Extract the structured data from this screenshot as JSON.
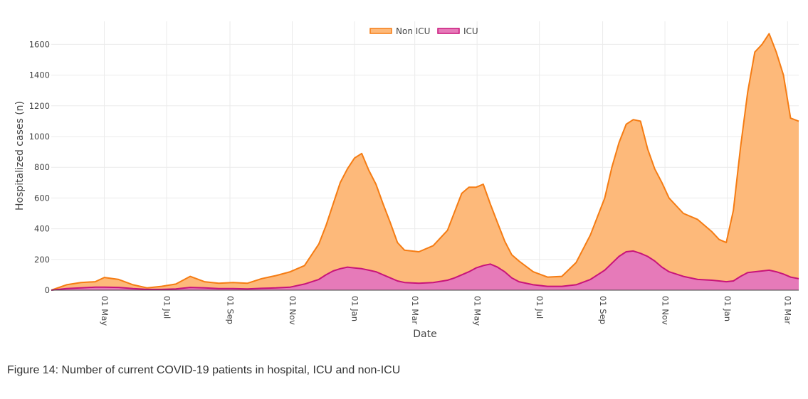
{
  "caption": "Figure 14: Number of current COVID-19 patients in hospital, ICU and non-ICU",
  "chart_data": {
    "type": "area",
    "stacked": true,
    "xlabel": "Date",
    "ylabel": "Hospitalized cases (n)",
    "x_range": [
      "2020-03-10",
      "2022-03-12"
    ],
    "ylim": [
      0,
      1750
    ],
    "y_ticks": [
      0,
      200,
      400,
      600,
      800,
      1000,
      1200,
      1400,
      1600
    ],
    "x_ticks": [
      {
        "date": "2020-05-01",
        "label": "01 May"
      },
      {
        "date": "2020-07-01",
        "label": "01 Jul"
      },
      {
        "date": "2020-09-01",
        "label": "01 Sep"
      },
      {
        "date": "2020-11-01",
        "label": "01 Nov"
      },
      {
        "date": "2021-01-01",
        "label": "01 Jan"
      },
      {
        "date": "2021-03-01",
        "label": "01 Mar"
      },
      {
        "date": "2021-05-01",
        "label": "01 May"
      },
      {
        "date": "2021-07-01",
        "label": "01 Jul"
      },
      {
        "date": "2021-09-01",
        "label": "01 Sep"
      },
      {
        "date": "2021-11-01",
        "label": "01 Nov"
      },
      {
        "date": "2022-01-01",
        "label": "01 Jan"
      },
      {
        "date": "2022-03-01",
        "label": "01 Mar"
      }
    ],
    "grid": true,
    "legend_position": "top-center",
    "dates": [
      "2020-03-10",
      "2020-03-25",
      "2020-04-08",
      "2020-04-22",
      "2020-05-01",
      "2020-05-15",
      "2020-05-29",
      "2020-06-12",
      "2020-06-26",
      "2020-07-10",
      "2020-07-24",
      "2020-08-07",
      "2020-08-21",
      "2020-09-04",
      "2020-09-18",
      "2020-10-02",
      "2020-10-16",
      "2020-10-30",
      "2020-11-13",
      "2020-11-27",
      "2020-12-04",
      "2020-12-11",
      "2020-12-18",
      "2020-12-25",
      "2021-01-01",
      "2021-01-08",
      "2021-01-15",
      "2021-01-22",
      "2021-01-29",
      "2021-02-05",
      "2021-02-12",
      "2021-02-19",
      "2021-03-05",
      "2021-03-19",
      "2021-04-02",
      "2021-04-09",
      "2021-04-16",
      "2021-04-23",
      "2021-04-30",
      "2021-05-07",
      "2021-05-14",
      "2021-05-21",
      "2021-05-28",
      "2021-06-04",
      "2021-06-11",
      "2021-06-25",
      "2021-07-09",
      "2021-07-23",
      "2021-08-06",
      "2021-08-20",
      "2021-09-03",
      "2021-09-10",
      "2021-09-17",
      "2021-09-24",
      "2021-10-01",
      "2021-10-08",
      "2021-10-15",
      "2021-10-22",
      "2021-10-29",
      "2021-11-05",
      "2021-11-19",
      "2021-12-03",
      "2021-12-17",
      "2021-12-24",
      "2021-12-31",
      "2022-01-07",
      "2022-01-14",
      "2022-01-21",
      "2022-01-28",
      "2022-02-04",
      "2022-02-11",
      "2022-02-18",
      "2022-02-25",
      "2022-03-04",
      "2022-03-12"
    ],
    "series": [
      {
        "name": "Non ICU",
        "stacked_total": [
          0,
          35,
          50,
          55,
          83,
          70,
          35,
          15,
          25,
          40,
          90,
          55,
          45,
          50,
          45,
          75,
          95,
          120,
          160,
          300,
          420,
          560,
          700,
          790,
          860,
          890,
          780,
          690,
          560,
          440,
          310,
          260,
          250,
          290,
          390,
          510,
          630,
          670,
          670,
          690,
          560,
          440,
          320,
          230,
          190,
          120,
          85,
          90,
          180,
          360,
          600,
          800,
          960,
          1080,
          1110,
          1100,
          920,
          790,
          700,
          600,
          500,
          460,
          380,
          330,
          310,
          520,
          930,
          1290,
          1550,
          1600,
          1670,
          1550,
          1400,
          1120,
          1100
        ]
      },
      {
        "name": "ICU",
        "values": [
          0,
          10,
          15,
          20,
          20,
          18,
          10,
          5,
          5,
          8,
          18,
          15,
          10,
          10,
          8,
          12,
          15,
          20,
          40,
          70,
          100,
          125,
          140,
          150,
          145,
          140,
          130,
          120,
          100,
          80,
          60,
          50,
          45,
          50,
          65,
          80,
          100,
          120,
          145,
          160,
          170,
          150,
          120,
          80,
          55,
          35,
          25,
          25,
          35,
          70,
          130,
          175,
          220,
          250,
          255,
          240,
          220,
          190,
          150,
          120,
          90,
          70,
          65,
          60,
          55,
          60,
          90,
          115,
          120,
          125,
          130,
          120,
          105,
          85,
          75
        ]
      }
    ]
  },
  "colors": {
    "non_icu_fill": "#FDB97A",
    "non_icu_line": "#F57C13",
    "icu_fill": "#E67AB9",
    "icu_line": "#C8147A",
    "grid": "#ebebeb"
  }
}
